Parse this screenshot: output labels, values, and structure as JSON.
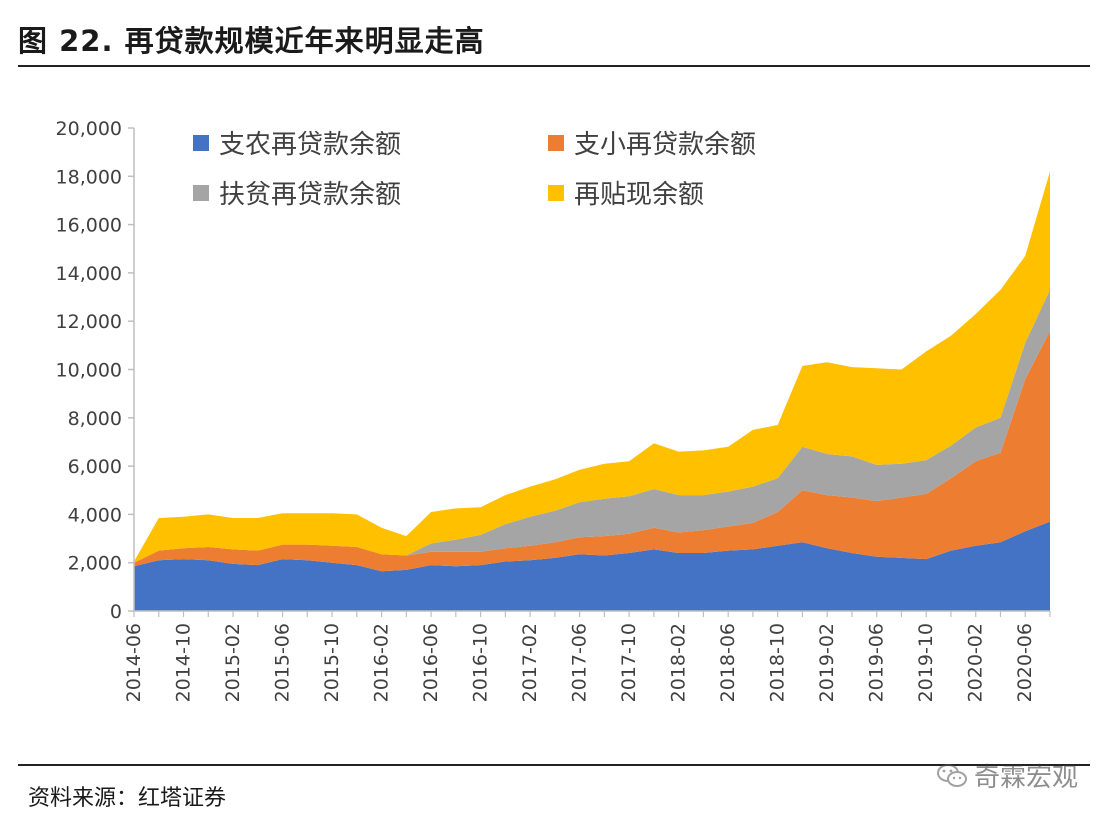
{
  "title": "图 22. 再贷款规模近年来明显走高",
  "source": "资料来源：红塔证券",
  "watermark": "奇霖宏观",
  "colors": {
    "zhinong": "#4472C4",
    "zhixiao": "#ED7D31",
    "fupin": "#A5A5A5",
    "tiexian": "#FFC000"
  },
  "chart_data": {
    "type": "area",
    "stacked": true,
    "ylim": [
      0,
      20000
    ],
    "yticks": [
      "20,000",
      "18,000",
      "16,000",
      "14,000",
      "12,000",
      "10,000",
      "8,000",
      "6,000",
      "4,000",
      "2,000",
      "0"
    ],
    "ytick_values": [
      20000,
      18000,
      16000,
      14000,
      12000,
      10000,
      8000,
      6000,
      4000,
      2000,
      0
    ],
    "x": [
      "2014-06",
      "2014-08",
      "2014-10",
      "2014-12",
      "2015-02",
      "2015-04",
      "2015-06",
      "2015-08",
      "2015-10",
      "2015-12",
      "2016-02",
      "2016-04",
      "2016-06",
      "2016-08",
      "2016-10",
      "2016-12",
      "2017-02",
      "2017-04",
      "2017-06",
      "2017-08",
      "2017-10",
      "2017-12",
      "2018-02",
      "2018-04",
      "2018-06",
      "2018-08",
      "2018-10",
      "2018-12",
      "2019-02",
      "2019-04",
      "2019-06",
      "2019-08",
      "2019-10",
      "2019-12",
      "2020-02",
      "2020-04",
      "2020-06",
      "2020-08"
    ],
    "xtick_labels": [
      "2014-06",
      "2014-10",
      "2015-02",
      "2015-06",
      "2015-10",
      "2016-02",
      "2016-06",
      "2016-10",
      "2017-02",
      "2017-06",
      "2017-10",
      "2018-02",
      "2018-06",
      "2018-10",
      "2019-02",
      "2019-06",
      "2019-10",
      "2020-02",
      "2020-06"
    ],
    "legend_placement": "top-left",
    "grid": false,
    "series": [
      {
        "name": "支农再贷款余额",
        "color_key": "zhinong",
        "values": [
          1850,
          2100,
          2150,
          2100,
          1950,
          1900,
          2150,
          2100,
          2000,
          1900,
          1650,
          1700,
          1900,
          1850,
          1900,
          2050,
          2100,
          2200,
          2350,
          2300,
          2400,
          2550,
          2400,
          2400,
          2500,
          2550,
          2700,
          2850,
          2600,
          2400,
          2250,
          2200,
          2150,
          2500,
          2700,
          2850,
          3300,
          3700
        ]
      },
      {
        "name": "支小再贷款余额",
        "color_key": "zhixiao",
        "values": [
          150,
          400,
          450,
          550,
          600,
          600,
          600,
          650,
          700,
          750,
          700,
          600,
          550,
          600,
          550,
          550,
          600,
          650,
          700,
          800,
          800,
          900,
          850,
          950,
          1000,
          1100,
          1400,
          2150,
          2200,
          2300,
          2300,
          2500,
          2700,
          3000,
          3500,
          3700,
          6300,
          7900
        ]
      },
      {
        "name": "扶贫再贷款余额",
        "color_key": "fupin",
        "values": [
          0,
          0,
          0,
          0,
          0,
          0,
          0,
          0,
          0,
          0,
          0,
          0,
          350,
          500,
          700,
          1000,
          1200,
          1300,
          1450,
          1550,
          1550,
          1600,
          1550,
          1450,
          1450,
          1500,
          1400,
          1800,
          1700,
          1700,
          1500,
          1400,
          1400,
          1350,
          1400,
          1450,
          1500,
          1700
        ]
      },
      {
        "name": "再贴现余额",
        "color_key": "tiexian",
        "values": [
          50,
          1350,
          1300,
          1350,
          1300,
          1350,
          1300,
          1300,
          1350,
          1350,
          1100,
          800,
          1300,
          1300,
          1150,
          1200,
          1250,
          1300,
          1350,
          1450,
          1450,
          1900,
          1800,
          1850,
          1850,
          2350,
          2200,
          3350,
          3800,
          3700,
          4000,
          3900,
          4500,
          4550,
          4700,
          5300,
          3600,
          4900
        ]
      }
    ]
  }
}
